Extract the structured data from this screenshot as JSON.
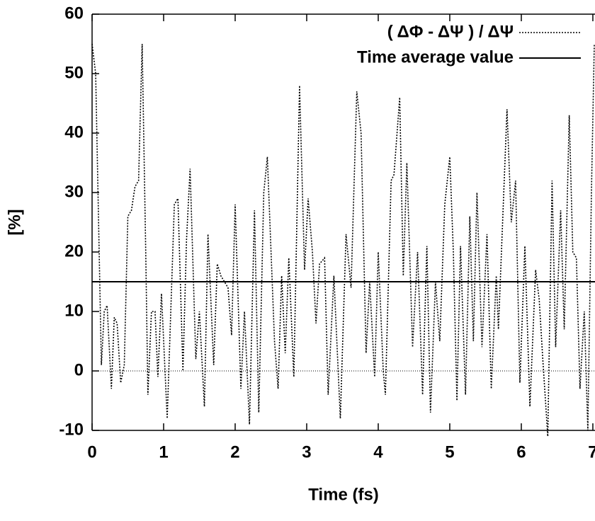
{
  "chart_data": {
    "type": "line",
    "xlabel": "Time (fs)",
    "ylabel": "[%]",
    "xlim": [
      0,
      7.03
    ],
    "ylim": [
      -10,
      60
    ],
    "xticks": [
      0,
      1,
      2,
      3,
      4,
      5,
      6,
      7
    ],
    "yticks": [
      -10,
      0,
      10,
      20,
      30,
      40,
      50,
      60
    ],
    "legend": "top-right",
    "zero_axis": true,
    "series": [
      {
        "name": "( ΔΦ - ΔΨ ) / ΔΨ",
        "color": "#000000",
        "dash": "dotted",
        "x": [
          0,
          0.05,
          0.13,
          0.17,
          0.21,
          0.27,
          0.31,
          0.35,
          0.4,
          0.45,
          0.5,
          0.55,
          0.6,
          0.65,
          0.7,
          0.75,
          0.78,
          0.83,
          0.88,
          0.92,
          0.97,
          1.05,
          1.15,
          1.2,
          1.27,
          1.32,
          1.37,
          1.45,
          1.5,
          1.57,
          1.62,
          1.7,
          1.75,
          1.8,
          1.85,
          1.9,
          1.95,
          2.0,
          2.08,
          2.13,
          2.2,
          2.27,
          2.33,
          2.4,
          2.45,
          2.55,
          2.6,
          2.65,
          2.7,
          2.75,
          2.82,
          2.9,
          2.97,
          3.02,
          3.08,
          3.13,
          3.18,
          3.25,
          3.3,
          3.38,
          3.47,
          3.55,
          3.62,
          3.7,
          3.76,
          3.83,
          3.88,
          3.95,
          4.0,
          4.07,
          4.1,
          4.18,
          4.22,
          4.3,
          4.35,
          4.4,
          4.48,
          4.55,
          4.62,
          4.68,
          4.73,
          4.8,
          4.86,
          4.93,
          5.0,
          5.05,
          5.1,
          5.15,
          5.22,
          5.28,
          5.33,
          5.38,
          5.45,
          5.52,
          5.58,
          5.65,
          5.68,
          5.8,
          5.86,
          5.92,
          5.98,
          6.05,
          6.12,
          6.2,
          6.25,
          6.3,
          6.37,
          6.43,
          6.48,
          6.55,
          6.6,
          6.67,
          6.72,
          6.77,
          6.82,
          6.88,
          6.93,
          6.98,
          7.02
        ],
        "values": [
          55,
          50,
          1,
          10,
          11,
          -3,
          9,
          8,
          -2,
          1,
          26,
          27,
          31,
          32,
          55,
          20,
          -4,
          10,
          10,
          -1,
          13,
          -8,
          28,
          29,
          0,
          22,
          34,
          2,
          10,
          -6,
          23,
          1,
          18,
          16,
          15,
          14,
          6,
          28,
          -3,
          10,
          -9,
          27,
          -7,
          30,
          36,
          5,
          -3,
          16,
          3,
          19,
          -1,
          48,
          17,
          29,
          20,
          8,
          18,
          19,
          -4,
          16,
          -8,
          23,
          14,
          47,
          40,
          3,
          15,
          -1,
          20,
          0,
          -4,
          32,
          33,
          46,
          16,
          35,
          4,
          20,
          -4,
          21,
          -7,
          15,
          5,
          28,
          36,
          20,
          -5,
          21,
          -4,
          26,
          5,
          30,
          4,
          23,
          -3,
          16,
          7,
          44,
          25,
          32,
          -2,
          21,
          -6,
          17,
          12,
          2,
          -11,
          32,
          4,
          27,
          7,
          43,
          20,
          19,
          -3,
          10,
          -10,
          30,
          55
        ]
      },
      {
        "name": "Time average value",
        "color": "#000000",
        "dash": "solid",
        "x": [
          0,
          7.03
        ],
        "values": [
          15,
          15
        ]
      }
    ]
  }
}
